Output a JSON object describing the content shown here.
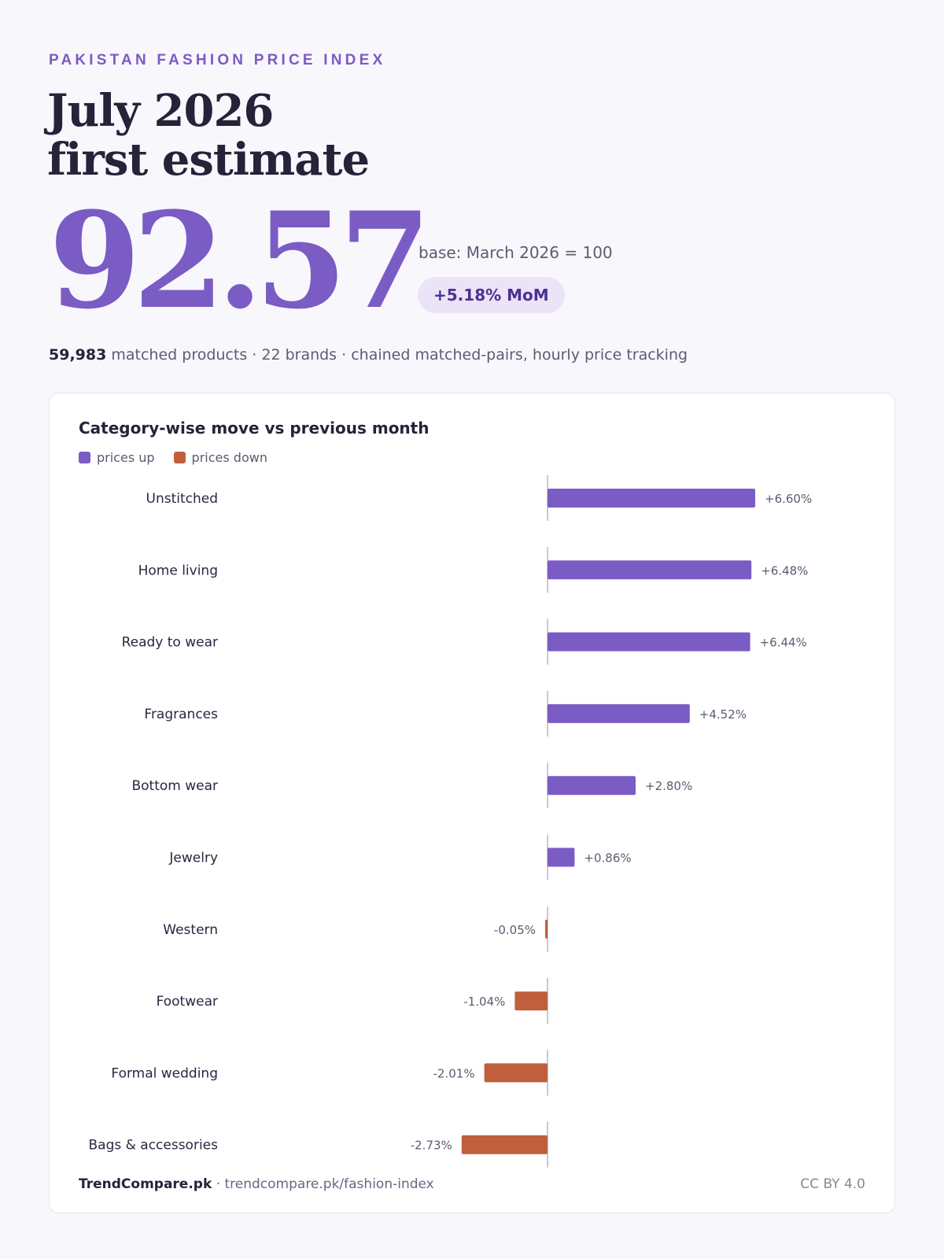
{
  "header": {
    "kicker": "PAKISTAN FASHION PRICE INDEX",
    "title_line1": "July 2026",
    "title_line2": "first estimate",
    "index_value": "92.57",
    "base": "base: March 2026 = 100",
    "mom": "+5.18% MoM"
  },
  "meta": {
    "products_count": "59,983",
    "rest": "matched products · 22 brands · chained matched-pairs, hourly price tracking"
  },
  "chart_data": {
    "type": "bar",
    "orientation": "horizontal",
    "title": "Category-wise move vs previous month",
    "legend": [
      {
        "label": "prices up",
        "color": "#7b5bc4"
      },
      {
        "label": "prices down",
        "color": "#c05f3c"
      }
    ],
    "categories": [
      "Unstitched",
      "Home living",
      "Ready to wear",
      "Fragrances",
      "Bottom wear",
      "Jewelry",
      "Western",
      "Footwear",
      "Formal wedding",
      "Bags & accessories"
    ],
    "values": [
      6.6,
      6.48,
      6.44,
      4.52,
      2.8,
      0.86,
      -0.05,
      -1.04,
      -2.01,
      -2.73
    ],
    "labels": [
      "+6.60%",
      "+6.48%",
      "+6.44%",
      "+4.52%",
      "+2.80%",
      "+0.86%",
      "-0.05%",
      "-1.04%",
      "-2.01%",
      "-2.73%"
    ],
    "unit": "%",
    "grid": false
  },
  "footer": {
    "brand": "TrendCompare.pk",
    "url": "· trendcompare.pk/fashion-index",
    "license": "CC BY 4.0"
  },
  "colors": {
    "accent": "#7b5bc4",
    "negative": "#c05f3c",
    "text_dark": "#27213a",
    "text_muted": "#5f5a70",
    "pill_bg": "#ebe3f6"
  }
}
